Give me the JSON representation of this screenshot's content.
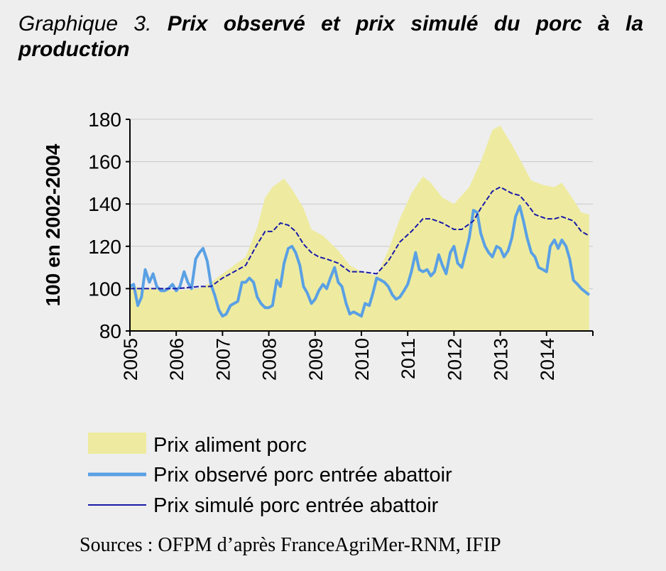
{
  "title": {
    "lead": "Graphique 3.",
    "main": "Prix observé et prix simulé du porc à la production"
  },
  "source": "Sources : OFPM d’après FranceAgriMer-RNM, IFIP",
  "colors": {
    "background": "#eeeeee",
    "area_fill": "#eeeba0",
    "observed_line": "#5aa0e4",
    "simulated_line": "#1a1aa8",
    "grid": "#c8c8c8"
  },
  "chart_data": {
    "type": "line",
    "ylabel": "100 en 2002-2004",
    "xlabel": "",
    "ylim": [
      80,
      180
    ],
    "yticks": [
      80,
      100,
      120,
      140,
      160,
      180
    ],
    "xlim": [
      2005,
      2015
    ],
    "xticks": [
      "2005",
      "2006",
      "2007",
      "2008",
      "2009",
      "2010",
      "2011",
      "2012",
      "2013",
      "2014"
    ],
    "grid": "horizontal",
    "legend_position": "bottom",
    "series": [
      {
        "name": "Prix aliment porc",
        "style": "area",
        "points": [
          [
            2005.0,
            101
          ],
          [
            2005.5,
            100
          ],
          [
            2006.0,
            99
          ],
          [
            2006.5,
            100
          ],
          [
            2006.75,
            103
          ],
          [
            2007.0,
            107
          ],
          [
            2007.25,
            111
          ],
          [
            2007.5,
            115
          ],
          [
            2007.75,
            129
          ],
          [
            2007.92,
            143
          ],
          [
            2008.08,
            148
          ],
          [
            2008.33,
            152
          ],
          [
            2008.5,
            147
          ],
          [
            2008.75,
            138
          ],
          [
            2008.92,
            128
          ],
          [
            2009.17,
            125
          ],
          [
            2009.5,
            118
          ],
          [
            2009.75,
            111
          ],
          [
            2010.0,
            108
          ],
          [
            2010.33,
            106
          ],
          [
            2010.58,
            118
          ],
          [
            2010.83,
            133
          ],
          [
            2011.08,
            145
          ],
          [
            2011.33,
            153
          ],
          [
            2011.5,
            150
          ],
          [
            2011.75,
            143
          ],
          [
            2012.0,
            140
          ],
          [
            2012.33,
            148
          ],
          [
            2012.58,
            160
          ],
          [
            2012.83,
            175
          ],
          [
            2013.0,
            177
          ],
          [
            2013.25,
            168
          ],
          [
            2013.5,
            158
          ],
          [
            2013.67,
            151
          ],
          [
            2013.92,
            149
          ],
          [
            2014.17,
            148
          ],
          [
            2014.33,
            150
          ],
          [
            2014.58,
            142
          ],
          [
            2014.75,
            136
          ],
          [
            2014.92,
            135
          ]
        ]
      },
      {
        "name": "Prix observé porc entrée abattoir",
        "style": "line",
        "points": [
          [
            2005.0,
            101
          ],
          [
            2005.08,
            102
          ],
          [
            2005.17,
            92
          ],
          [
            2005.25,
            96
          ],
          [
            2005.33,
            109
          ],
          [
            2005.42,
            103
          ],
          [
            2005.5,
            107
          ],
          [
            2005.58,
            101
          ],
          [
            2005.67,
            99
          ],
          [
            2005.75,
            99
          ],
          [
            2005.83,
            100
          ],
          [
            2005.92,
            102
          ],
          [
            2006.0,
            99
          ],
          [
            2006.08,
            101
          ],
          [
            2006.17,
            108
          ],
          [
            2006.25,
            103
          ],
          [
            2006.33,
            100
          ],
          [
            2006.42,
            114
          ],
          [
            2006.5,
            117
          ],
          [
            2006.58,
            119
          ],
          [
            2006.67,
            113
          ],
          [
            2006.75,
            102
          ],
          [
            2006.83,
            97
          ],
          [
            2006.92,
            90
          ],
          [
            2007.0,
            87
          ],
          [
            2007.08,
            88
          ],
          [
            2007.17,
            92
          ],
          [
            2007.25,
            93
          ],
          [
            2007.33,
            94
          ],
          [
            2007.42,
            103
          ],
          [
            2007.5,
            103
          ],
          [
            2007.58,
            105
          ],
          [
            2007.67,
            103
          ],
          [
            2007.75,
            96
          ],
          [
            2007.83,
            93
          ],
          [
            2007.92,
            91
          ],
          [
            2008.0,
            91
          ],
          [
            2008.08,
            92
          ],
          [
            2008.17,
            104
          ],
          [
            2008.25,
            101
          ],
          [
            2008.33,
            112
          ],
          [
            2008.42,
            119
          ],
          [
            2008.5,
            120
          ],
          [
            2008.58,
            117
          ],
          [
            2008.67,
            111
          ],
          [
            2008.75,
            101
          ],
          [
            2008.83,
            98
          ],
          [
            2008.92,
            93
          ],
          [
            2009.0,
            95
          ],
          [
            2009.08,
            99
          ],
          [
            2009.17,
            102
          ],
          [
            2009.25,
            100
          ],
          [
            2009.33,
            105
          ],
          [
            2009.42,
            110
          ],
          [
            2009.5,
            103
          ],
          [
            2009.58,
            101
          ],
          [
            2009.67,
            93
          ],
          [
            2009.75,
            88
          ],
          [
            2009.83,
            89
          ],
          [
            2009.92,
            88
          ],
          [
            2010.0,
            87
          ],
          [
            2010.08,
            93
          ],
          [
            2010.17,
            92
          ],
          [
            2010.25,
            98
          ],
          [
            2010.33,
            105
          ],
          [
            2010.42,
            104
          ],
          [
            2010.5,
            103
          ],
          [
            2010.58,
            101
          ],
          [
            2010.67,
            97
          ],
          [
            2010.75,
            95
          ],
          [
            2010.83,
            96
          ],
          [
            2010.92,
            99
          ],
          [
            2011.0,
            102
          ],
          [
            2011.08,
            108
          ],
          [
            2011.17,
            117
          ],
          [
            2011.25,
            109
          ],
          [
            2011.33,
            108
          ],
          [
            2011.42,
            109
          ],
          [
            2011.5,
            106
          ],
          [
            2011.58,
            108
          ],
          [
            2011.67,
            116
          ],
          [
            2011.75,
            111
          ],
          [
            2011.83,
            107
          ],
          [
            2011.92,
            117
          ],
          [
            2012.0,
            120
          ],
          [
            2012.08,
            112
          ],
          [
            2012.17,
            110
          ],
          [
            2012.25,
            117
          ],
          [
            2012.33,
            124
          ],
          [
            2012.42,
            137
          ],
          [
            2012.5,
            136
          ],
          [
            2012.58,
            126
          ],
          [
            2012.67,
            120
          ],
          [
            2012.75,
            117
          ],
          [
            2012.83,
            115
          ],
          [
            2012.92,
            120
          ],
          [
            2013.0,
            119
          ],
          [
            2013.08,
            115
          ],
          [
            2013.17,
            118
          ],
          [
            2013.25,
            124
          ],
          [
            2013.33,
            134
          ],
          [
            2013.42,
            139
          ],
          [
            2013.5,
            132
          ],
          [
            2013.58,
            124
          ],
          [
            2013.67,
            117
          ],
          [
            2013.75,
            115
          ],
          [
            2013.83,
            110
          ],
          [
            2013.92,
            109
          ],
          [
            2014.0,
            108
          ],
          [
            2014.08,
            120
          ],
          [
            2014.17,
            123
          ],
          [
            2014.25,
            119
          ],
          [
            2014.33,
            123
          ],
          [
            2014.42,
            120
          ],
          [
            2014.5,
            114
          ],
          [
            2014.58,
            104
          ],
          [
            2014.67,
            102
          ],
          [
            2014.75,
            100
          ],
          [
            2014.92,
            97
          ]
        ]
      },
      {
        "name": "Prix simulé porc entrée abattoir",
        "style": "dashed",
        "points": [
          [
            2005.0,
            100
          ],
          [
            2005.5,
            100
          ],
          [
            2006.0,
            100
          ],
          [
            2006.5,
            101
          ],
          [
            2006.75,
            101
          ],
          [
            2007.0,
            105
          ],
          [
            2007.25,
            108
          ],
          [
            2007.5,
            111
          ],
          [
            2007.75,
            121
          ],
          [
            2007.92,
            127
          ],
          [
            2008.08,
            127
          ],
          [
            2008.25,
            131
          ],
          [
            2008.42,
            130
          ],
          [
            2008.58,
            127
          ],
          [
            2008.75,
            121
          ],
          [
            2008.92,
            117
          ],
          [
            2009.08,
            115
          ],
          [
            2009.25,
            114
          ],
          [
            2009.5,
            112
          ],
          [
            2009.75,
            108
          ],
          [
            2010.0,
            108
          ],
          [
            2010.33,
            107
          ],
          [
            2010.58,
            113
          ],
          [
            2010.83,
            122
          ],
          [
            2011.08,
            127
          ],
          [
            2011.33,
            133
          ],
          [
            2011.5,
            133
          ],
          [
            2011.75,
            131
          ],
          [
            2012.0,
            128
          ],
          [
            2012.17,
            128
          ],
          [
            2012.42,
            132
          ],
          [
            2012.58,
            138
          ],
          [
            2012.83,
            146
          ],
          [
            2013.0,
            148
          ],
          [
            2013.25,
            145
          ],
          [
            2013.42,
            144
          ],
          [
            2013.58,
            140
          ],
          [
            2013.75,
            135
          ],
          [
            2014.0,
            133
          ],
          [
            2014.17,
            133
          ],
          [
            2014.33,
            134
          ],
          [
            2014.58,
            132
          ],
          [
            2014.75,
            127
          ],
          [
            2014.92,
            125
          ]
        ]
      }
    ]
  }
}
